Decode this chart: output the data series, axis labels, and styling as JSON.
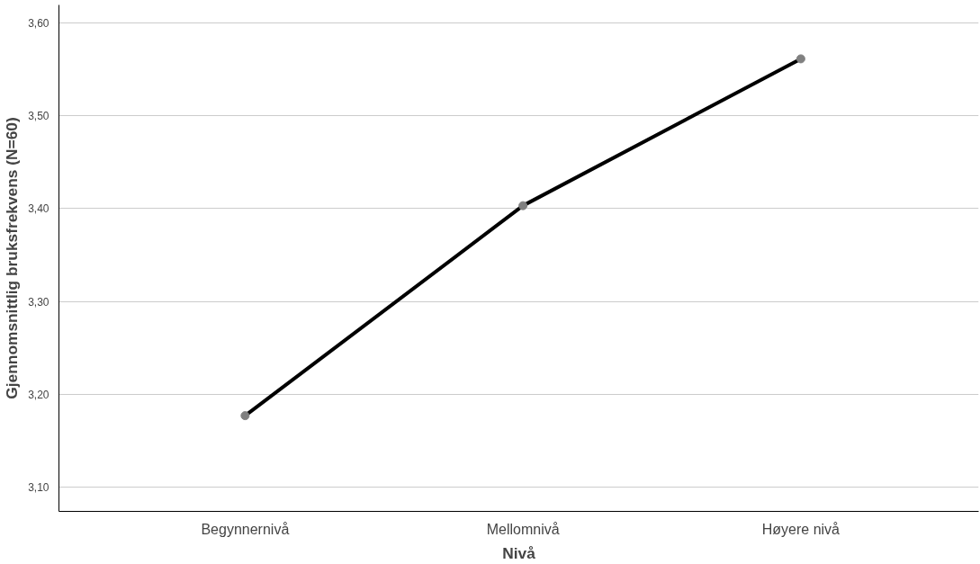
{
  "chart_data": {
    "type": "line",
    "xlabel": "Nivå",
    "ylabel": "Gjennomsnittlig bruksfrekvens (N=60)",
    "categories": [
      "Begynnernivå",
      "Mellomnivå",
      "Høyere nivå"
    ],
    "series": [
      {
        "color": "#000000",
        "values": [
          3.177,
          3.403,
          3.561
        ]
      }
    ],
    "ylim": [
      3.074,
      3.619
    ],
    "yticks": [
      {
        "value": 3.1,
        "label": "3,10"
      },
      {
        "value": 3.2,
        "label": "3,20"
      },
      {
        "value": 3.3,
        "label": "3,30"
      },
      {
        "value": 3.4,
        "label": "3,40"
      },
      {
        "value": 3.5,
        "label": "3,50"
      },
      {
        "value": 3.6,
        "label": "3,60"
      }
    ],
    "grid": "y",
    "marker": "circle",
    "line_style": "solid"
  }
}
